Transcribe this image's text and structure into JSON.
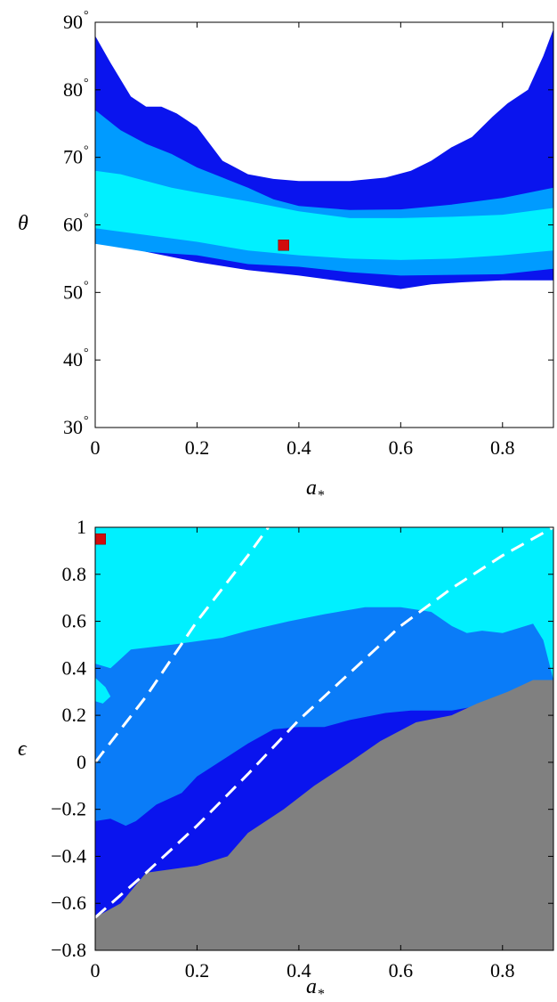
{
  "chart_data": [
    {
      "type": "contour",
      "xlabel": "a",
      "xlabel_subscript": "*",
      "ylabel": "θ",
      "xlim": [
        0,
        0.9
      ],
      "ylim": [
        30,
        90
      ],
      "xticks": [
        "0",
        "0.2",
        "0.4",
        "0.6",
        "0.8"
      ],
      "yticks": [
        "30",
        "40",
        "50",
        "60",
        "70",
        "80",
        "90"
      ],
      "ytick_suffix": "°",
      "grid": false,
      "colors": {
        "outer": "#0a14ee",
        "middle": "#009bff",
        "inner": "#00f0ff",
        "marker": "#d10c0c"
      },
      "series": [
        {
          "level": "outer",
          "upper": [
            [
              0,
              88
            ],
            [
              0.03,
              84
            ],
            [
              0.07,
              79
            ],
            [
              0.1,
              77.5
            ],
            [
              0.13,
              77.5
            ],
            [
              0.16,
              76.5
            ],
            [
              0.2,
              74.5
            ],
            [
              0.25,
              69.5
            ],
            [
              0.3,
              67.5
            ],
            [
              0.35,
              66.8
            ],
            [
              0.4,
              66.5
            ],
            [
              0.5,
              66.5
            ],
            [
              0.57,
              67
            ],
            [
              0.62,
              68
            ],
            [
              0.66,
              69.5
            ],
            [
              0.7,
              71.5
            ],
            [
              0.74,
              73
            ],
            [
              0.78,
              76
            ],
            [
              0.81,
              78
            ],
            [
              0.85,
              80
            ],
            [
              0.88,
              85
            ],
            [
              0.9,
              89
            ]
          ],
          "lower": [
            [
              0,
              58
            ],
            [
              0.1,
              56
            ],
            [
              0.2,
              54.5
            ],
            [
              0.3,
              53.3
            ],
            [
              0.4,
              52.5
            ],
            [
              0.5,
              51.5
            ],
            [
              0.6,
              50.5
            ],
            [
              0.66,
              51.2
            ],
            [
              0.72,
              51.5
            ],
            [
              0.8,
              51.8
            ],
            [
              0.9,
              51.8
            ]
          ]
        },
        {
          "level": "middle",
          "upper": [
            [
              0,
              77
            ],
            [
              0.05,
              74
            ],
            [
              0.1,
              72
            ],
            [
              0.15,
              70.5
            ],
            [
              0.2,
              68.5
            ],
            [
              0.25,
              67
            ],
            [
              0.3,
              65.5
            ],
            [
              0.35,
              63.8
            ],
            [
              0.4,
              62.8
            ],
            [
              0.5,
              62.2
            ],
            [
              0.6,
              62.3
            ],
            [
              0.7,
              63
            ],
            [
              0.8,
              64
            ],
            [
              0.9,
              65.5
            ]
          ],
          "lower": [
            [
              0,
              57.2
            ],
            [
              0.1,
              56
            ],
            [
              0.2,
              55.5
            ],
            [
              0.3,
              54.2
            ],
            [
              0.4,
              53.8
            ],
            [
              0.5,
              53
            ],
            [
              0.6,
              52.5
            ],
            [
              0.7,
              52.6
            ],
            [
              0.8,
              52.7
            ],
            [
              0.9,
              53.5
            ]
          ]
        },
        {
          "level": "inner",
          "upper": [
            [
              0,
              68
            ],
            [
              0.05,
              67.5
            ],
            [
              0.1,
              66.5
            ],
            [
              0.15,
              65.5
            ],
            [
              0.2,
              64.8
            ],
            [
              0.3,
              63.5
            ],
            [
              0.4,
              62
            ],
            [
              0.5,
              61
            ],
            [
              0.6,
              61
            ],
            [
              0.7,
              61.2
            ],
            [
              0.8,
              61.5
            ],
            [
              0.9,
              62.5
            ]
          ],
          "lower": [
            [
              0,
              59.5
            ],
            [
              0.1,
              58.5
            ],
            [
              0.2,
              57.5
            ],
            [
              0.3,
              56.2
            ],
            [
              0.4,
              55.5
            ],
            [
              0.5,
              55
            ],
            [
              0.6,
              54.8
            ],
            [
              0.7,
              55
            ],
            [
              0.8,
              55.5
            ],
            [
              0.9,
              56.2
            ]
          ]
        }
      ],
      "marker": {
        "x": 0.37,
        "y": 57
      }
    },
    {
      "type": "contour",
      "xlabel": "a",
      "xlabel_subscript": "*",
      "ylabel": "ϵ",
      "xlim": [
        0,
        0.9
      ],
      "ylim": [
        -0.8,
        1
      ],
      "xticks": [
        "0",
        "0.2",
        "0.4",
        "0.6",
        "0.8"
      ],
      "yticks": [
        "−0.8",
        "−0.6",
        "−0.4",
        "−0.2",
        "0",
        "0.2",
        "0.4",
        "0.6",
        "0.8",
        "1"
      ],
      "grid": false,
      "colors": {
        "background": "#00f0ff",
        "middle": "#0a7cf8",
        "outer": "#0a14ee",
        "excluded": "#808080",
        "dashed": "#ffffff",
        "marker": "#d10c0c"
      },
      "regions": {
        "middle": [
          [
            0,
            0.42
          ],
          [
            0.03,
            0.4
          ],
          [
            0.07,
            0.48
          ],
          [
            0.15,
            0.5
          ],
          [
            0.25,
            0.53
          ],
          [
            0.3,
            0.56
          ],
          [
            0.38,
            0.6
          ],
          [
            0.45,
            0.63
          ],
          [
            0.53,
            0.66
          ],
          [
            0.6,
            0.66
          ],
          [
            0.66,
            0.64
          ],
          [
            0.7,
            0.58
          ],
          [
            0.73,
            0.55
          ],
          [
            0.76,
            0.56
          ],
          [
            0.8,
            0.55
          ],
          [
            0.86,
            0.59
          ],
          [
            0.88,
            0.52
          ],
          [
            0.9,
            0.35
          ],
          [
            0.9,
            -0.8
          ],
          [
            0,
            -0.8
          ]
        ],
        "middle_hole": [
          [
            0,
            0.36
          ],
          [
            0.02,
            0.32
          ],
          [
            0.03,
            0.28
          ],
          [
            0.015,
            0.25
          ],
          [
            0,
            0.26
          ]
        ],
        "outer": [
          [
            0,
            -0.25
          ],
          [
            0.03,
            -0.24
          ],
          [
            0.06,
            -0.27
          ],
          [
            0.08,
            -0.25
          ],
          [
            0.12,
            -0.18
          ],
          [
            0.17,
            -0.13
          ],
          [
            0.2,
            -0.06
          ],
          [
            0.25,
            0.01
          ],
          [
            0.3,
            0.08
          ],
          [
            0.35,
            0.14
          ],
          [
            0.4,
            0.15
          ],
          [
            0.45,
            0.15
          ],
          [
            0.5,
            0.18
          ],
          [
            0.57,
            0.21
          ],
          [
            0.62,
            0.22
          ],
          [
            0.7,
            0.22
          ],
          [
            0.75,
            0.24
          ],
          [
            0.82,
            0.27
          ],
          [
            0.9,
            0.35
          ],
          [
            0.9,
            -0.8
          ],
          [
            0,
            -0.8
          ]
        ],
        "excluded": [
          [
            0,
            -0.8
          ],
          [
            0,
            -0.66
          ],
          [
            0.05,
            -0.6
          ],
          [
            0.1,
            -0.47
          ],
          [
            0.2,
            -0.44
          ],
          [
            0.26,
            -0.4
          ],
          [
            0.3,
            -0.3
          ],
          [
            0.37,
            -0.2
          ],
          [
            0.43,
            -0.1
          ],
          [
            0.5,
            0
          ],
          [
            0.56,
            0.09
          ],
          [
            0.63,
            0.17
          ],
          [
            0.7,
            0.2
          ],
          [
            0.75,
            0.25
          ],
          [
            0.81,
            0.3
          ],
          [
            0.86,
            0.35
          ],
          [
            0.9,
            0.35
          ],
          [
            0.9,
            -0.8
          ]
        ]
      },
      "dashed_lines": [
        [
          [
            0,
            0
          ],
          [
            0.05,
            0.14
          ],
          [
            0.1,
            0.28
          ],
          [
            0.15,
            0.44
          ],
          [
            0.2,
            0.6
          ],
          [
            0.25,
            0.74
          ],
          [
            0.3,
            0.88
          ],
          [
            0.34,
            1
          ]
        ],
        [
          [
            0,
            -0.66
          ],
          [
            0.1,
            -0.47
          ],
          [
            0.2,
            -0.27
          ],
          [
            0.3,
            -0.05
          ],
          [
            0.4,
            0.18
          ],
          [
            0.5,
            0.38
          ],
          [
            0.6,
            0.58
          ],
          [
            0.7,
            0.74
          ],
          [
            0.8,
            0.88
          ],
          [
            0.9,
            1
          ]
        ]
      ],
      "marker": {
        "x": 0.01,
        "y": 0.95
      }
    }
  ]
}
